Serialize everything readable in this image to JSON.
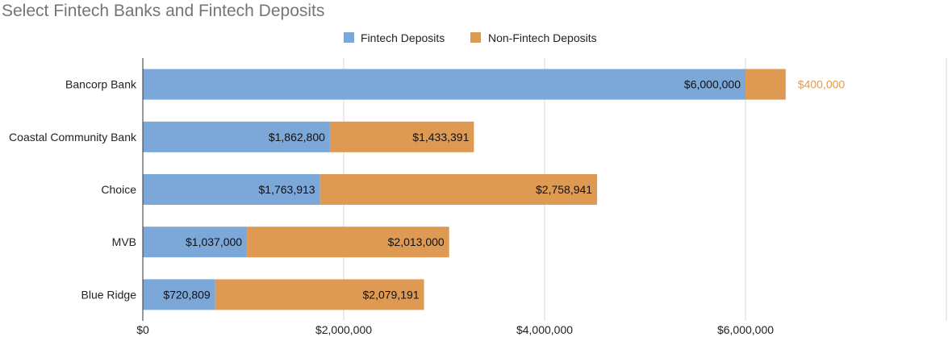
{
  "chart_data": {
    "type": "bar",
    "orientation": "horizontal",
    "stacked": true,
    "title": "Select Fintech Banks and Fintech Deposits",
    "legend_position": "top",
    "grid": true,
    "xlim": [
      0,
      8000000
    ],
    "x_ticks": [
      0,
      2000000,
      4000000,
      6000000
    ],
    "x_tick_labels": [
      "$0",
      "$2,000,000",
      "$4,000,000",
      "$6,000,000"
    ],
    "categories": [
      "Bancorp Bank",
      "Coastal Community Bank",
      "Choice",
      "MVB",
      "Blue Ridge"
    ],
    "series": [
      {
        "name": "Fintech Deposits",
        "color": "#7BA7D9",
        "values": [
          6000000,
          1862800,
          1763913,
          1037000,
          720809
        ],
        "labels": [
          "$6,000,000",
          "$1,862,800",
          "$1,763,913",
          "$1,037,000",
          "$720,809"
        ]
      },
      {
        "name": "Non-Fintech Deposits",
        "color": "#DE9A52",
        "values": [
          400000,
          1433391,
          2758941,
          2013000,
          2079191
        ],
        "labels": [
          "$400,000",
          "$1,433,391",
          "$2,758,941",
          "$2,013,000",
          "$2,079,191"
        ]
      }
    ]
  }
}
